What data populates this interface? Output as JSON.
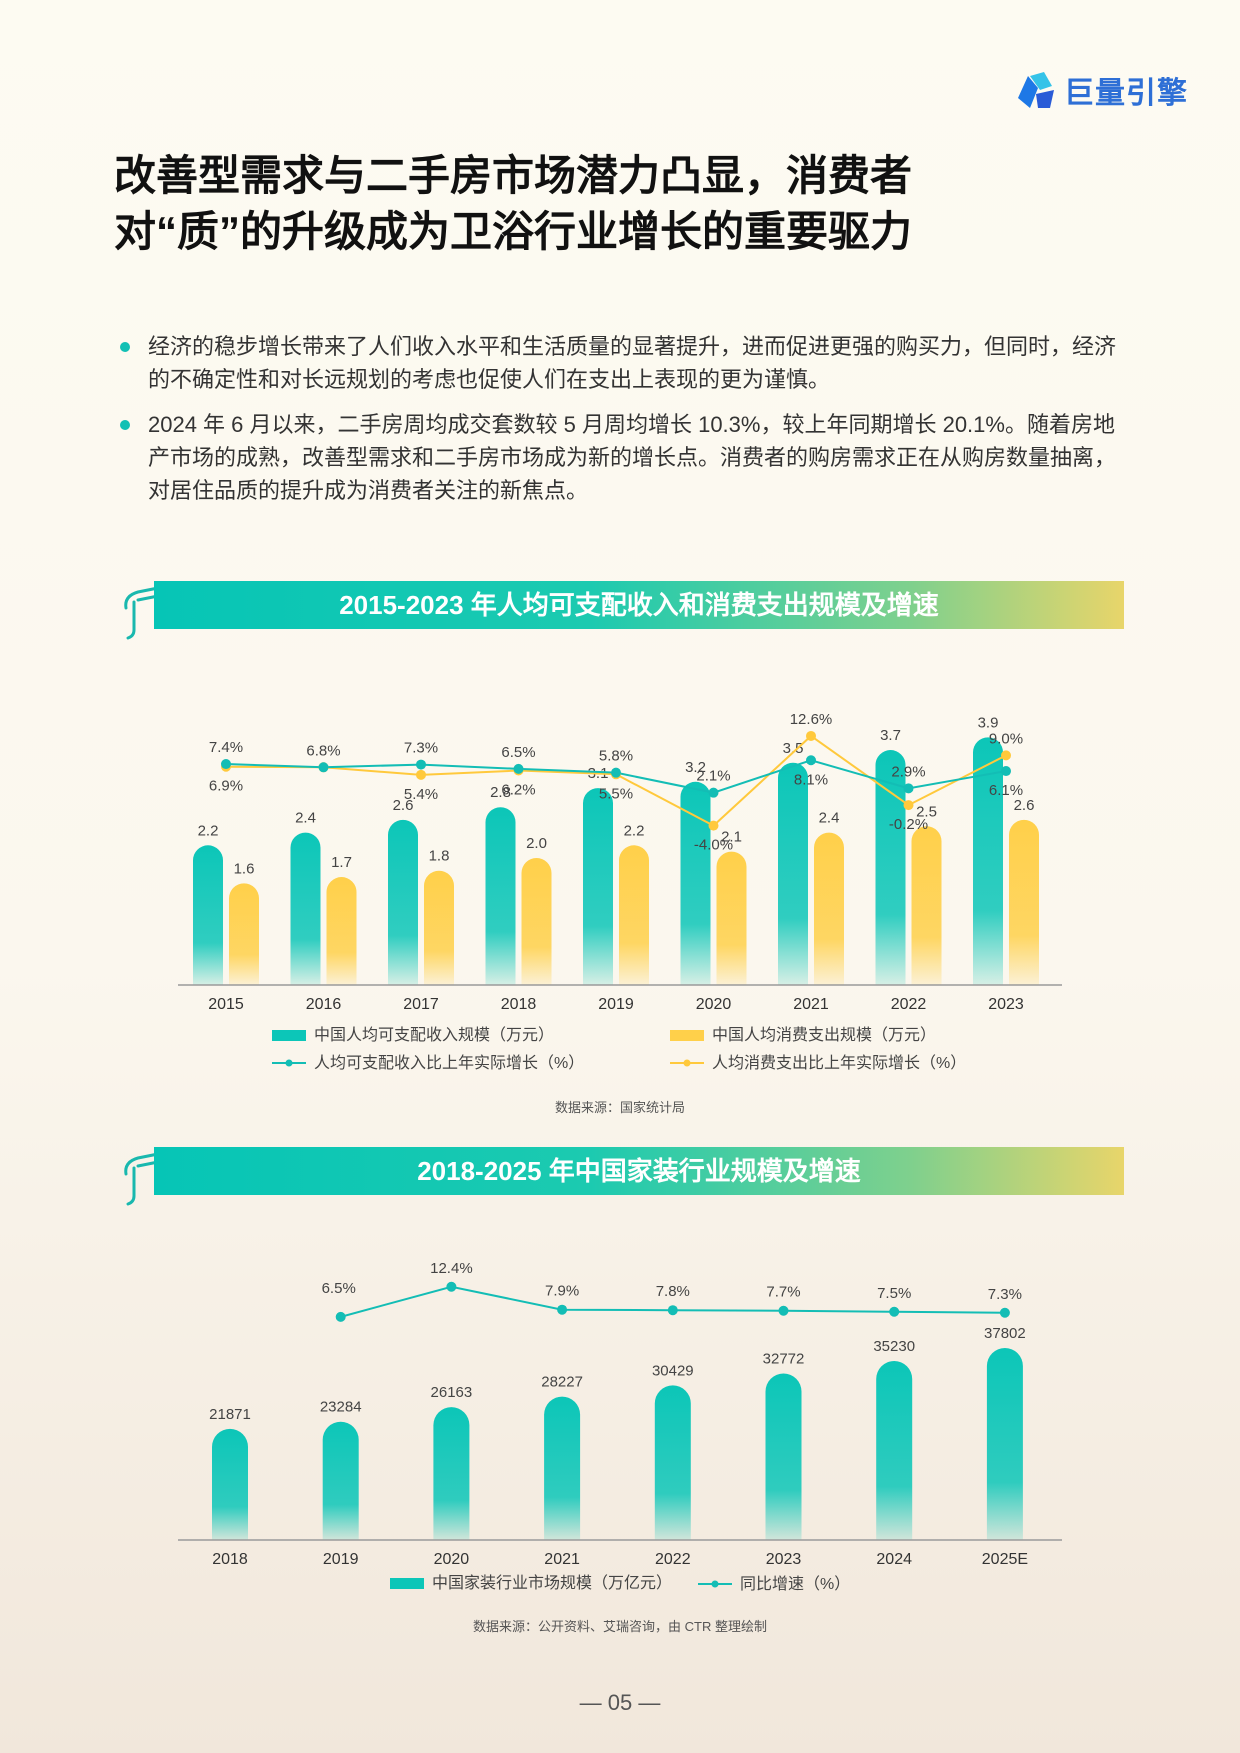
{
  "logo": {
    "text": "巨量引擎",
    "icon": "brand-logo-icon"
  },
  "title": {
    "line1": "改善型需求与二手房市场潜力凸显，消费者",
    "line2": "对“质”的升级成为卫浴行业增长的重要驱力"
  },
  "bullets": [
    "经济的稳步增长带来了人们收入水平和生活质量的显著提升，进而促进更强的购买力，但同时，经济的不确定性和对长远规划的考虑也促使人们在支出上表现的更为谨慎。",
    "2024 年 6 月以来，二手房周均成交套数较 5 月周均增长 10.3%，较上年同期增长 20.1%。随着房地产市场的成熟，改善型需求和二手房市场成为新的增长点。消费者的购房需求正在从购房数量抽离，对居住品质的提升成为消费者关注的新焦点。"
  ],
  "colors": {
    "teal": "#0cc6b8",
    "yellow": "#ffd04a",
    "line_teal": "#13bdb5",
    "line_yellow": "#ffc93c"
  },
  "chart_data": [
    {
      "type": "bar",
      "title": "2015-2023 年人均可支配收入和消费支出规模及增速",
      "categories": [
        "2015",
        "2016",
        "2017",
        "2018",
        "2019",
        "2020",
        "2021",
        "2022",
        "2023"
      ],
      "series": [
        {
          "name": "中国人均可支配收入规模（万元）",
          "kind": "bar",
          "color": "#0cc6b8",
          "values": [
            2.2,
            2.4,
            2.6,
            2.8,
            3.1,
            3.2,
            3.5,
            3.7,
            3.9
          ],
          "labels": [
            "2.2",
            "2.4",
            "2.6",
            "2.8",
            "3.1",
            "3.2",
            "3.5",
            "3.7",
            "3.9"
          ]
        },
        {
          "name": "中国人均消费支出规模（万元）",
          "kind": "bar",
          "color": "#ffd04a",
          "values": [
            1.6,
            1.7,
            1.8,
            2.0,
            2.2,
            2.1,
            2.4,
            2.5,
            2.6
          ],
          "labels": [
            "1.6",
            "1.7",
            "1.8",
            "2.0",
            "2.2",
            "2.1",
            "2.4",
            "2.5",
            "2.6"
          ]
        },
        {
          "name": "人均可支配收入比上年实际增长（%）",
          "kind": "line",
          "color": "#13bdb5",
          "values": [
            7.4,
            6.8,
            7.3,
            6.5,
            5.8,
            2.1,
            8.1,
            2.9,
            6.1
          ],
          "labels": [
            "7.4%",
            "6.8%",
            "7.3%",
            "6.5%",
            "5.8%",
            "2.1%",
            "8.1%",
            "2.9%",
            "6.1%"
          ]
        },
        {
          "name": "人均消费支出比上年实际增长（%）",
          "kind": "line",
          "color": "#ffc93c",
          "values": [
            6.9,
            6.8,
            5.4,
            6.2,
            5.5,
            -4.0,
            12.6,
            -0.2,
            9.0
          ],
          "labels": [
            "6.9%",
            "",
            "5.4%",
            "6.2%",
            "5.5%",
            "-4.0%",
            "12.6%",
            "-0.2%",
            "9.0%"
          ]
        }
      ],
      "legend_position": "bottom",
      "source": "数据来源：国家统计局"
    },
    {
      "type": "bar",
      "title": "2018-2025 年中国家装行业规模及增速",
      "categories": [
        "2018",
        "2019",
        "2020",
        "2021",
        "2022",
        "2023",
        "2024",
        "2025E"
      ],
      "series": [
        {
          "name": "中国家装行业市场规模（万亿元）",
          "kind": "bar",
          "color": "#0cc6b8",
          "values": [
            21871,
            23284,
            26163,
            28227,
            30429,
            32772,
            35230,
            37802
          ],
          "labels": [
            "21871",
            "23284",
            "26163",
            "28227",
            "30429",
            "32772",
            "35230",
            "37802"
          ]
        },
        {
          "name": "同比增速（%）",
          "kind": "line",
          "color": "#13bdb5",
          "values": [
            null,
            6.5,
            12.4,
            7.9,
            7.8,
            7.7,
            7.5,
            7.3
          ],
          "labels": [
            "",
            "6.5%",
            "12.4%",
            "7.9%",
            "7.8%",
            "7.7%",
            "7.5%",
            "7.3%"
          ]
        }
      ],
      "legend_position": "bottom",
      "source": "数据来源：公开资料、艾瑞咨询，由 CTR 整理绘制"
    }
  ],
  "page_number": "— 05 —"
}
